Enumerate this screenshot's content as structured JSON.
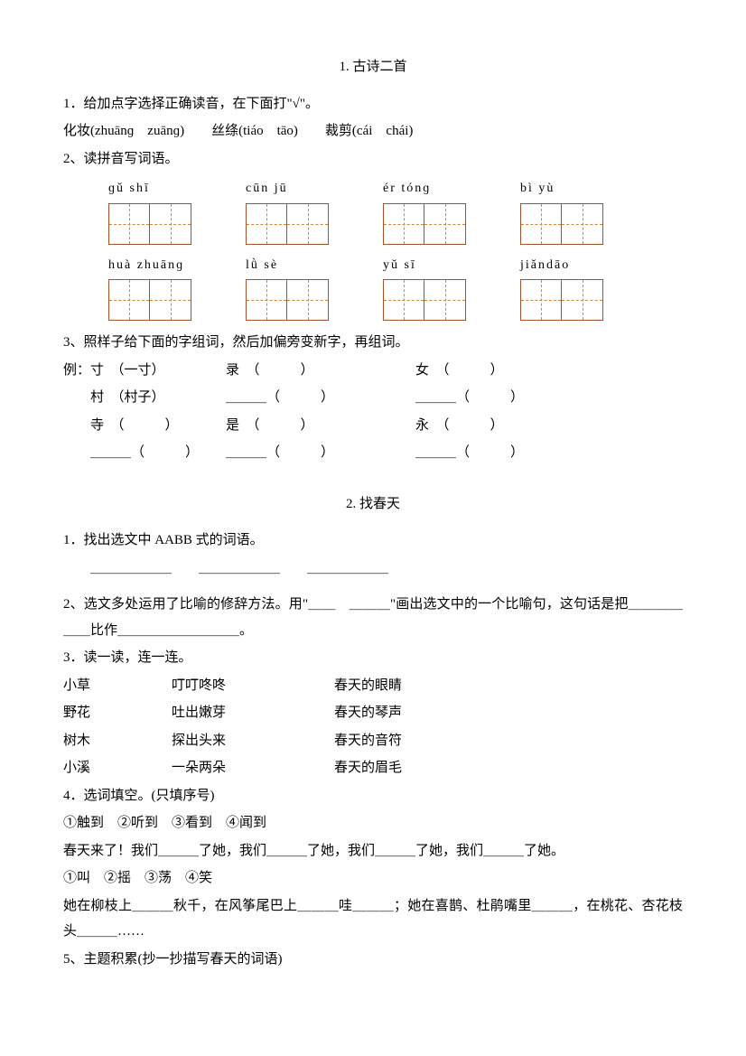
{
  "s1": {
    "title": "1. 古诗二首",
    "q1": "1．给加点字选择正确读音，在下面打\"√\"。",
    "q1_line": "化妆(zhuānɡ　zuānɡ)　　丝绦(tiáo　tāo)　　裁剪(cái　chái)",
    "q2": " 2、读拼音写词语。",
    "row1": [
      {
        "py": "ɡǔ  shī"
      },
      {
        "py": "cūn  jū"
      },
      {
        "py": "ér tónɡ"
      },
      {
        "py": "bì  yù"
      }
    ],
    "row2": [
      {
        "py": "huà zhuānɡ"
      },
      {
        "py": "lǜ  sè"
      },
      {
        "py": "yǔ   sī"
      },
      {
        "py": "jiǎndāo"
      }
    ],
    "q3": "3、照样子给下面的字组词，然后加偏旁变新字，再组词。",
    "ex": [
      [
        "例：寸　（一寸）",
        "录　（　　　）",
        "女　（　　　）"
      ],
      [
        "　　村　（村子）",
        "＿＿＿（　　　）",
        "＿＿＿（　　　）"
      ],
      [
        "　　寺　（　　　）",
        "是　（　　　）",
        "永　（　　　）"
      ],
      [
        "　　＿＿＿（　　　）",
        "＿＿＿（　　　）",
        "＿＿＿（　　　）"
      ]
    ]
  },
  "s2": {
    "title": "2. 找春天",
    "q1": "1．找出选文中 AABB 式的词语。",
    "q1_blanks": "＿＿＿＿＿＿　　＿＿＿＿＿＿　　＿＿＿＿＿＿",
    "q2": "2、选文多处运用了比喻的修辞方法。用\"＿＿　＿＿＿\"画出选文中的一个比喻句，这句话是把＿＿＿＿＿＿比作＿＿＿＿＿＿＿＿＿。",
    "q3": "3．读一读，连一连。",
    "match": [
      [
        "小草",
        "叮叮咚咚",
        "春天的眼睛"
      ],
      [
        "野花",
        "吐出嫩芽",
        "春天的琴声"
      ],
      [
        "树木",
        "探出头来",
        "春天的音符"
      ],
      [
        "小溪",
        "一朵两朵",
        "春天的眉毛"
      ]
    ],
    "q4": "4．选词填空。(只填序号)",
    "q4_opts1": "①触到　②听到　③看到　④闻到",
    "q4_sent1": "春天来了！我们＿＿＿了她，我们＿＿＿了她，我们＿＿＿了她，我们＿＿＿了她。",
    "q4_opts2": "①叫　②摇　③荡　④笑",
    "q4_sent2": "她在柳枝上＿＿＿秋千，在风筝尾巴上＿＿＿哇＿＿＿；她在喜鹊、杜鹃嘴里＿＿＿，在桃花、杏花枝头＿＿＿……",
    "q5": "5、主题积累(抄一抄描写春天的词语)"
  }
}
